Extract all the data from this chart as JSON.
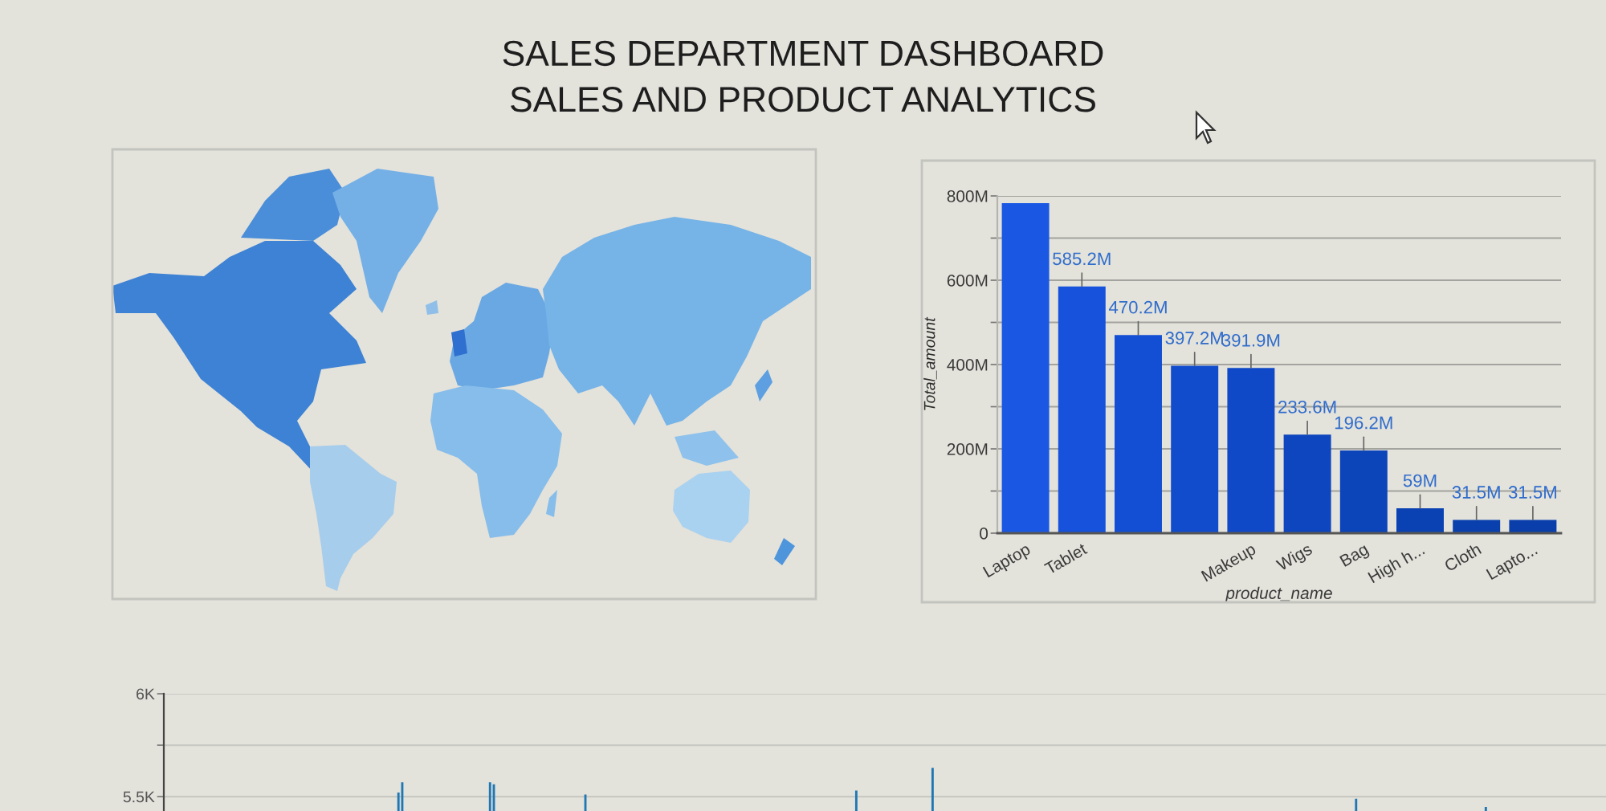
{
  "chart_data": [
    {
      "type": "other",
      "title": "SALES DEPARTMENT DASHBOARD",
      "subtitle": "SALES AND PRODUCT ANALYTICS"
    },
    {
      "type": "bar",
      "xlabel": "product_name",
      "ylabel": "Total_amount",
      "categories": [
        "Laptop",
        "Tablet",
        null,
        null,
        "Makeup",
        "Wigs",
        "Bag",
        "High h...",
        "Cloth",
        "Lapto..."
      ],
      "values": [
        783,
        585.2,
        470.2,
        397.2,
        391.9,
        233.6,
        196.2,
        59,
        31.5,
        31.5
      ],
      "colors": [
        "#1a58e4",
        "#1652dc",
        "#134fd5",
        "#114ccd",
        "#0f49c7",
        "#0d46bf",
        "#0c44b9",
        "#0b42b3",
        "#0a40ae",
        "#0a3fab"
      ],
      "value_labels": [
        null,
        "585.2M",
        "470.2M",
        "397.2M",
        "391.9M",
        "233.6M",
        "196.2M",
        "59M",
        "31.5M",
        "31.5M"
      ],
      "ylim": [
        0,
        800
      ],
      "yticks": [
        0,
        {
          "value": 100,
          "label": null
        },
        {
          "value": 200,
          "label": "200M"
        },
        {
          "value": 300,
          "label": null
        },
        {
          "value": 400,
          "label": "400M"
        },
        {
          "value": 500,
          "label": null
        },
        {
          "value": 600,
          "label": "600M"
        },
        {
          "value": 700,
          "label": null
        },
        {
          "value": 800,
          "label": "800M"
        }
      ],
      "grid": "y"
    },
    {
      "type": "bar",
      "color": "#1f77b4",
      "ylim": [
        5.43,
        6
      ],
      "yticks": [
        {
          "value": 5.5,
          "label": "5.5K"
        },
        {
          "value": 5.75,
          "label": null
        },
        {
          "value": 6,
          "label": "6K"
        }
      ],
      "grid": "y",
      "categories": [
        null,
        null,
        null,
        null,
        null,
        null,
        null,
        null,
        null,
        null,
        null,
        null,
        null,
        null,
        null,
        null,
        null,
        null,
        null,
        null,
        null,
        null,
        null,
        null,
        null,
        null,
        null,
        null,
        null,
        null,
        null,
        null,
        null,
        null,
        null,
        null,
        null,
        null,
        null,
        null,
        null,
        null,
        null,
        null,
        null,
        null,
        null,
        null,
        null,
        null,
        null,
        null,
        null,
        null,
        null,
        null,
        null,
        null,
        null,
        null,
        null,
        null,
        null,
        null,
        null,
        null,
        null,
        null,
        null,
        null,
        null,
        null,
        null,
        null,
        null,
        null,
        null,
        null,
        null,
        null,
        null,
        null,
        null,
        null,
        null,
        null,
        null,
        null,
        null,
        null,
        null,
        null,
        null,
        null,
        null,
        null,
        null,
        null,
        null,
        null,
        null,
        null,
        null,
        null,
        null,
        null,
        null,
        null,
        null,
        null,
        null,
        null,
        null,
        null,
        null,
        null,
        null,
        null,
        null,
        null,
        null,
        null,
        null,
        null,
        null,
        null,
        null,
        null,
        null,
        null,
        null,
        null,
        null,
        null,
        null,
        null,
        null,
        null,
        null,
        null,
        null,
        null,
        null,
        null,
        null,
        null,
        null,
        null,
        null,
        null,
        null,
        null,
        null,
        null,
        null,
        null,
        null,
        null,
        null,
        null,
        null,
        null,
        null,
        null,
        null,
        null,
        null,
        null,
        null,
        null,
        null,
        null,
        null,
        null,
        null,
        null,
        null,
        null,
        null,
        null,
        null,
        null,
        null,
        null,
        null,
        null,
        null,
        null,
        null,
        null,
        null,
        null,
        null,
        null,
        null,
        null,
        null,
        null,
        null,
        null,
        null,
        null,
        null,
        null,
        null,
        null,
        null,
        null,
        null,
        null,
        null,
        null,
        null,
        null,
        null,
        null,
        null,
        null,
        null,
        null,
        null,
        null,
        null,
        null,
        null,
        null,
        null,
        null,
        null,
        null,
        null,
        null,
        null,
        null,
        null,
        null,
        null,
        null,
        null,
        null,
        null,
        null,
        null,
        null,
        null,
        null,
        null,
        null,
        null,
        null,
        null,
        null,
        null,
        null,
        null,
        null,
        null,
        null,
        null,
        null,
        null,
        null,
        null,
        null,
        null,
        null,
        null,
        null,
        null,
        null,
        null,
        null,
        null,
        null,
        null,
        null,
        null,
        null,
        null,
        null,
        null,
        null,
        null,
        null,
        null,
        null,
        null,
        null,
        null,
        null,
        null,
        null,
        null,
        null,
        null,
        null,
        null,
        null,
        null,
        null,
        null,
        null,
        null,
        null,
        null,
        null,
        null,
        null,
        null,
        null,
        null,
        null,
        null,
        null,
        null,
        null,
        null,
        null,
        null,
        null,
        null,
        null,
        null,
        null,
        null,
        null,
        null,
        null,
        null,
        null,
        null,
        null,
        null,
        null,
        null,
        null,
        null,
        null,
        null,
        null,
        null,
        null,
        null,
        null,
        null,
        null,
        null,
        null,
        null,
        null,
        null,
        null,
        null,
        null,
        null,
        null,
        null,
        null,
        null,
        null,
        null,
        null,
        null,
        null,
        null,
        null,
        null,
        null,
        null,
        null,
        null,
        null,
        null,
        null,
        null,
        null,
        null,
        null
      ],
      "values": [
        null,
        null,
        null,
        null,
        null,
        null,
        null,
        null,
        null,
        null,
        null,
        null,
        null,
        null,
        null,
        null,
        null,
        null,
        null,
        null,
        null,
        null,
        null,
        null,
        null,
        null,
        null,
        null,
        null,
        null,
        null,
        null,
        null,
        null,
        null,
        null,
        null,
        null,
        null,
        null,
        null,
        null,
        null,
        null,
        null,
        null,
        null,
        null,
        null,
        null,
        null,
        null,
        null,
        null,
        null,
        null,
        null,
        null,
        null,
        null,
        null,
        5.52,
        5.57,
        null,
        null,
        null,
        null,
        null,
        null,
        null,
        null,
        null,
        null,
        null,
        null,
        null,
        null,
        null,
        null,
        null,
        null,
        null,
        null,
        null,
        null,
        5.57,
        5.56,
        null,
        null,
        null,
        null,
        null,
        null,
        null,
        null,
        null,
        null,
        null,
        null,
        null,
        null,
        null,
        null,
        null,
        null,
        null,
        null,
        null,
        null,
        null,
        5.51,
        null,
        null,
        null,
        null,
        null,
        null,
        null,
        null,
        null,
        null,
        null,
        null,
        null,
        null,
        null,
        null,
        null,
        null,
        null,
        null,
        null,
        null,
        null,
        null,
        null,
        null,
        null,
        null,
        null,
        null,
        null,
        null,
        null,
        null,
        null,
        null,
        null,
        null,
        null,
        null,
        null,
        null,
        null,
        null,
        null,
        null,
        null,
        null,
        null,
        null,
        null,
        null,
        null,
        null,
        null,
        null,
        null,
        null,
        null,
        null,
        null,
        null,
        null,
        null,
        null,
        null,
        null,
        null,
        null,
        null,
        5.53,
        null,
        null,
        null,
        null,
        null,
        null,
        null,
        null,
        null,
        null,
        null,
        null,
        null,
        null,
        null,
        null,
        null,
        null,
        null,
        5.64,
        null,
        null,
        null,
        null,
        null,
        null,
        null,
        null,
        null,
        null,
        null,
        null,
        null,
        null,
        null,
        null,
        null,
        null,
        null,
        null,
        null,
        null,
        null,
        null,
        null,
        null,
        null,
        null,
        null,
        null,
        null,
        null,
        null,
        null,
        null,
        null,
        null,
        null,
        null,
        null,
        null,
        null,
        null,
        null,
        null,
        null,
        null,
        null,
        null,
        null,
        null,
        null,
        null,
        null,
        null,
        null,
        null,
        null,
        null,
        null,
        null,
        null,
        null,
        null,
        null,
        null,
        null,
        null,
        null,
        null,
        null,
        null,
        null,
        null,
        null,
        null,
        null,
        null,
        null,
        null,
        null,
        null,
        null,
        null,
        null,
        null,
        null,
        null,
        null,
        null,
        null,
        null,
        null,
        null,
        null,
        null,
        null,
        null,
        null,
        null,
        null,
        null,
        null,
        null,
        null,
        null,
        null,
        null,
        null,
        null,
        5.49,
        null,
        null,
        null,
        null,
        null,
        null,
        null,
        null,
        null,
        null,
        null,
        null,
        null,
        null,
        null,
        null,
        null,
        null,
        null,
        null,
        null,
        null,
        null,
        null,
        null,
        null,
        null,
        null,
        null,
        null,
        null,
        null,
        null,
        5.45,
        null,
        null,
        null,
        null,
        null,
        null,
        null,
        null,
        null,
        null,
        null,
        null,
        null,
        null,
        null,
        null,
        null,
        null,
        null,
        null,
        null,
        null,
        null,
        null,
        null,
        null,
        null,
        null,
        null,
        null,
        null
      ]
    }
  ]
}
